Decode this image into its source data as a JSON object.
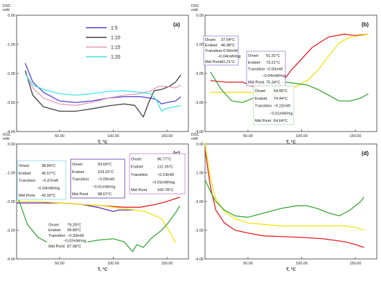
{
  "figure": {
    "panels": [
      {
        "label": "(a)",
        "unit_top": "DSC",
        "unit_bottom": "mW",
        "xlabel": "T, °C",
        "legend": [
          {
            "name": "1:5",
            "color": "#4b3fd6"
          },
          {
            "name": "1:10",
            "color": "#3c3c3c"
          },
          {
            "name": "1:15",
            "color": "#e79ab4"
          },
          {
            "name": "1:20",
            "color": "#3fe3e3"
          }
        ],
        "annotations": []
      },
      {
        "label": "(b)",
        "unit_top": "DSC",
        "unit_bottom": "mW",
        "xlabel": "T, °C",
        "legend": [],
        "annotations": [
          {
            "lines": [
              "Onset",
              "Endset",
              "Transition",
              "",
              "Mid Point"
            ],
            "values": [
              "37.64°C",
              "46.98°C",
              "−0.50mW",
              "−0.04mW/mg",
              "42.21°C"
            ]
          },
          {
            "lines": [
              "Onset",
              "Endset",
              "Transition",
              "",
              "Mid Point"
            ],
            "values": [
              "61.31°C",
              "73.21°C",
              "−0.50mW",
              "−0.04mW/mg",
              "75.34°C"
            ]
          },
          {
            "lines": [
              "Onset",
              "Endset",
              "Transition",
              "",
              "Mid Point"
            ],
            "values": [
              "54.95°C",
              "74.44°C",
              "−0.22mW",
              "−0.01mW/mg",
              "64.64°C"
            ]
          }
        ]
      },
      {
        "label": "(c)",
        "unit_top": "DSC",
        "unit_bottom": "mW",
        "xlabel": "T, °C",
        "legend": [],
        "annotations": [
          {
            "lines": [
              "Onset",
              "Endset",
              "Transition",
              "",
              "Mid Point"
            ],
            "values": [
              "38.84°C",
              "45.57°C",
              "−0.47mW",
              "−0.04mW/mg",
              "42.92°C"
            ]
          },
          {
            "lines": [
              "Onset",
              "Endset",
              "Transition",
              "",
              "Mid Point"
            ],
            "values": [
              "93.69°C",
              "103.22°C",
              "−0.09mW",
              "−0.01mW/mg",
              "98.67°C"
            ]
          },
          {
            "lines": [
              "Onset",
              "Endset",
              "Transition",
              "",
              "Mid Point"
            ],
            "values": [
              "96.77°C",
              "112.35°C",
              "−0.13mW",
              "−0.01mW/mg",
              "100.78°C"
            ]
          },
          {
            "lines": [
              "Onset",
              "Endset",
              "Transition",
              "",
              "Mid Point"
            ],
            "values": [
              "79.29°C",
              "99.89°C",
              "−0.33mW",
              "−0.02mW/mg",
              "87.98°C"
            ]
          }
        ]
      },
      {
        "label": "(d)",
        "unit_top": "DSC",
        "unit_bottom": "mW",
        "xlabel": "T, °C",
        "legend": [],
        "annotations": []
      }
    ]
  },
  "chart_data": [
    {
      "type": "line",
      "panel": "(a)",
      "xlabel": "T, °C",
      "ylabel": "DSC mW",
      "xlim": [
        10,
        170
      ],
      "ylim": [
        -4.0,
        0.0
      ],
      "xticks": [
        50,
        100,
        150
      ],
      "yticks": [
        0,
        -1,
        -2,
        -3,
        -4
      ],
      "grid": false,
      "legend_position": "top-center",
      "series": [
        {
          "name": "1:5",
          "color": "#4b3fd6",
          "x": [
            18,
            25,
            35,
            50,
            65,
            80,
            95,
            110,
            125,
            135,
            140,
            145,
            150,
            158,
            163
          ],
          "y": [
            -1.65,
            -2.3,
            -2.65,
            -2.95,
            -3.0,
            -2.95,
            -2.85,
            -2.8,
            -2.8,
            -2.85,
            -2.9,
            -3.05,
            -3.0,
            -2.95,
            -2.8
          ]
        },
        {
          "name": "1:10",
          "color": "#3c3c3c",
          "x": [
            18,
            25,
            35,
            50,
            65,
            80,
            95,
            110,
            120,
            128,
            133,
            138,
            145,
            152,
            158,
            163
          ],
          "y": [
            -1.9,
            -2.75,
            -3.15,
            -3.3,
            -3.3,
            -3.22,
            -3.12,
            -3.05,
            -3.1,
            -3.5,
            -3.0,
            -2.6,
            -2.55,
            -2.45,
            -2.3,
            -2.05
          ]
        },
        {
          "name": "1:15",
          "color": "#e79ab4",
          "x": [
            18,
            25,
            35,
            50,
            65,
            80,
            95,
            110,
            125,
            135,
            142,
            150,
            158,
            163
          ],
          "y": [
            -2.0,
            -2.5,
            -2.85,
            -3.05,
            -3.1,
            -3.0,
            -2.85,
            -2.75,
            -2.7,
            -2.6,
            -2.45,
            -2.45,
            -2.5,
            -2.4
          ]
        },
        {
          "name": "1:20",
          "color": "#3fe3e3",
          "x": [
            18,
            25,
            35,
            50,
            65,
            80,
            95,
            110,
            125,
            135,
            140,
            145,
            150,
            158,
            163
          ],
          "y": [
            -2.0,
            -2.4,
            -2.55,
            -2.7,
            -2.75,
            -2.7,
            -2.62,
            -2.6,
            -2.65,
            -2.7,
            -2.9,
            -3.3,
            -3.2,
            -3.15,
            -3.1
          ]
        }
      ]
    },
    {
      "type": "line",
      "panel": "(b)",
      "xlabel": "T, °C",
      "ylabel": "DSC mW",
      "xlim": [
        10,
        170
      ],
      "ylim": [
        -4.0,
        0.0
      ],
      "xticks": [
        50,
        100,
        150
      ],
      "yticks": [
        0,
        -1,
        -2,
        -3,
        -4
      ],
      "grid": false,
      "series": [
        {
          "color": "#e41a1c",
          "x": [
            15,
            30,
            45,
            55,
            62,
            68,
            72,
            76,
            82,
            90,
            100,
            110,
            125,
            140,
            150,
            162
          ],
          "y": [
            -2.25,
            -2.3,
            -2.3,
            -2.45,
            -2.7,
            -2.9,
            -3.0,
            -2.7,
            -2.3,
            -1.9,
            -1.5,
            -1.1,
            -0.75,
            -0.65,
            -0.7,
            -0.65
          ]
        },
        {
          "color": "#f2e40a",
          "x": [
            15,
            30,
            45,
            60,
            75,
            85,
            95,
            105,
            115,
            125,
            135,
            145,
            155,
            162
          ],
          "y": [
            -2.65,
            -2.65,
            -2.65,
            -2.65,
            -2.6,
            -2.55,
            -2.45,
            -2.25,
            -1.9,
            -1.4,
            -0.95,
            -0.75,
            -0.7,
            -0.65
          ]
        },
        {
          "color": "#35a535",
          "x": [
            15,
            25,
            35,
            45,
            55,
            65,
            75,
            85,
            95,
            105,
            115,
            125,
            135,
            145,
            155,
            162
          ],
          "y": [
            -1.95,
            -2.55,
            -2.95,
            -3.0,
            -2.85,
            -2.6,
            -2.4,
            -2.3,
            -2.35,
            -2.4,
            -2.55,
            -2.75,
            -2.95,
            -2.95,
            -2.85,
            -2.7
          ]
        }
      ]
    },
    {
      "type": "line",
      "panel": "(c)",
      "xlabel": "T, °C",
      "ylabel": "DSC mW",
      "xlim": [
        10,
        170
      ],
      "ylim": [
        -4.0,
        0.0
      ],
      "xticks": [
        50,
        100,
        150
      ],
      "yticks": [
        0,
        -1,
        -2,
        -3,
        -4
      ],
      "grid": false,
      "series": [
        {
          "color": "#e41a1c",
          "x": [
            10,
            30,
            50,
            70,
            90,
            110,
            125,
            140,
            150,
            158,
            162
          ],
          "y": [
            -2.05,
            -2.05,
            -2.05,
            -2.1,
            -2.15,
            -2.2,
            -2.2,
            -2.1,
            -2.0,
            -1.9,
            -1.85
          ]
        },
        {
          "color": "#5a2ea6",
          "x": [
            10,
            30,
            50,
            70,
            85,
            95,
            100,
            105,
            112,
            120
          ],
          "y": [
            -2.05,
            -2.05,
            -2.05,
            -2.1,
            -2.2,
            -2.3,
            -2.35,
            -2.3,
            -2.3,
            -2.3
          ]
        },
        {
          "color": "#f2e40a",
          "x": [
            10,
            30,
            50,
            70,
            90,
            110,
            130,
            145,
            150,
            155,
            158
          ],
          "y": [
            -2.0,
            -2.0,
            -2.05,
            -2.1,
            -2.15,
            -2.25,
            -2.35,
            -2.6,
            -2.9,
            -3.2,
            -3.45
          ]
        },
        {
          "color": "#35a535",
          "x": [
            12,
            20,
            30,
            40,
            55,
            70,
            85,
            100,
            110,
            118,
            122,
            128,
            135,
            145,
            150,
            158,
            162
          ],
          "y": [
            -1.95,
            -2.8,
            -3.25,
            -3.45,
            -3.5,
            -3.45,
            -3.35,
            -3.3,
            -3.4,
            -3.75,
            -3.5,
            -3.6,
            -3.3,
            -3.0,
            -2.8,
            -2.4,
            -2.15
          ]
        }
      ]
    },
    {
      "type": "line",
      "panel": "(d)",
      "xlabel": "T, °C",
      "ylabel": "DSC mW",
      "xlim": [
        10,
        170
      ],
      "ylim": [
        -4.0,
        0.0
      ],
      "xticks": [
        50,
        100,
        150
      ],
      "yticks": [
        0,
        -1,
        -2,
        -3,
        -4
      ],
      "grid": false,
      "series": [
        {
          "color": "#e41a1c",
          "x": [
            10,
            15,
            20,
            28,
            38,
            50,
            65,
            80,
            100,
            120,
            140,
            150,
            158
          ],
          "y": [
            -0.2,
            -1.5,
            -2.3,
            -2.75,
            -3.0,
            -3.1,
            -3.2,
            -3.22,
            -3.25,
            -3.3,
            -3.4,
            -3.5,
            -3.6
          ]
        },
        {
          "color": "#f2e40a",
          "x": [
            10,
            15,
            20,
            28,
            38,
            50,
            65,
            80,
            100,
            120,
            140,
            150,
            158
          ],
          "y": [
            0.05,
            -1.2,
            -1.9,
            -2.35,
            -2.6,
            -2.75,
            -2.8,
            -2.85,
            -2.85,
            -2.85,
            -2.85,
            -2.9,
            -3.0
          ]
        },
        {
          "color": "#35a535",
          "x": [
            10,
            15,
            20,
            28,
            38,
            50,
            65,
            80,
            95,
            105,
            115,
            125,
            135,
            145,
            155,
            158
          ],
          "y": [
            -1.25,
            -1.65,
            -2.0,
            -2.3,
            -2.5,
            -2.55,
            -2.4,
            -2.25,
            -2.15,
            -2.15,
            -2.25,
            -2.4,
            -2.5,
            -2.3,
            -2.0,
            -1.85
          ]
        }
      ]
    }
  ]
}
